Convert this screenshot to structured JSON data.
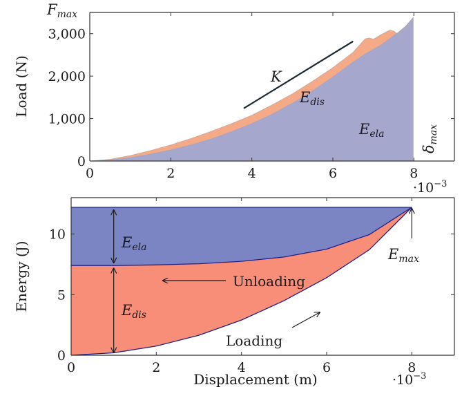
{
  "chart_data": [
    {
      "type": "area",
      "xlabel": "",
      "ylabel": "Load (N)",
      "x_ticks": [
        "0",
        "2",
        "4",
        "6",
        "8"
      ],
      "x_multiplier": "·10",
      "x_multiplier_exp": "−3",
      "y_ticks": [
        "0",
        "1,000",
        "2,000",
        "3,000"
      ],
      "xlim": [
        0,
        0.009
      ],
      "ylim": [
        0,
        3500
      ],
      "colors": {
        "dissipated": "#f4a987",
        "elastic": "#a5a8cc",
        "tangent": "#1a2a30"
      },
      "annotations": {
        "fmax_main": "F",
        "fmax_sub": "max",
        "stiffness": "K",
        "edis_main": "E",
        "edis_sub": "dis",
        "eela_main": "E",
        "eela_sub": "ela",
        "dmax_main": "δ",
        "dmax_sub": "max"
      },
      "series": [
        {
          "values": [
            [
              0,
              0
            ],
            [
              0.0005,
              25
            ],
            [
              0.001,
              80
            ],
            [
              0.0015,
              160
            ],
            [
              0.002,
              260
            ],
            [
              0.0025,
              380
            ],
            [
              0.003,
              520
            ],
            [
              0.0035,
              690
            ],
            [
              0.004,
              880
            ],
            [
              0.0045,
              1100
            ],
            [
              0.005,
              1360
            ],
            [
              0.0055,
              1650
            ],
            [
              0.006,
              1980
            ],
            [
              0.0065,
              2330
            ],
            [
              0.0068,
              2520
            ],
            [
              0.0072,
              2740
            ],
            [
              0.0076,
              3020
            ],
            [
              0.0078,
              3180
            ],
            [
              0.008,
              3400
            ]
          ]
        },
        {
          "values": [
            [
              0,
              0
            ],
            [
              0.0005,
              40
            ],
            [
              0.001,
              130
            ],
            [
              0.0015,
              245
            ],
            [
              0.002,
              380
            ],
            [
              0.0025,
              530
            ],
            [
              0.003,
              700
            ],
            [
              0.0035,
              880
            ],
            [
              0.004,
              1080
            ],
            [
              0.0045,
              1320
            ],
            [
              0.005,
              1580
            ],
            [
              0.0055,
              1880
            ],
            [
              0.006,
              2200
            ],
            [
              0.0065,
              2560
            ],
            [
              0.0068,
              2880
            ],
            [
              0.0069,
              2900
            ],
            [
              0.007,
              2870
            ],
            [
              0.0072,
              2980
            ],
            [
              0.0074,
              3080
            ],
            [
              0.0075,
              3060
            ],
            [
              0.0076,
              2990
            ],
            [
              0.0078,
              3140
            ],
            [
              0.008,
              3380
            ]
          ]
        }
      ],
      "tangent_line": [
        [
          0.0038,
          1240
        ],
        [
          0.0065,
          2820
        ]
      ]
    },
    {
      "type": "area",
      "xlabel": "Displacement (m)",
      "ylabel": "Energy (J)",
      "x_ticks": [
        "0",
        "2",
        "4",
        "6",
        "8"
      ],
      "x_multiplier": "·10",
      "x_multiplier_exp": "−3",
      "y_ticks": [
        "0",
        "5",
        "10"
      ],
      "xlim": [
        0,
        0.009
      ],
      "ylim": [
        0,
        13
      ],
      "colors": {
        "dissipated": "#f88e78",
        "elastic": "#7b85c4",
        "edge": "#1f1f8a",
        "arrow": "#1a1a1a"
      },
      "annotations": {
        "eela_main": "E",
        "eela_sub": "ela",
        "edis_main": "E",
        "edis_sub": "dis",
        "emax_main": "E",
        "emax_sub": "max",
        "unloading": "Unloading",
        "loading": "Loading"
      },
      "elastic_top": 12.2,
      "unloading_level": 7.4,
      "series": [
        {
          "values": [
            [
              0,
              0
            ],
            [
              0.001,
              0.2
            ],
            [
              0.002,
              0.75
            ],
            [
              0.003,
              1.65
            ],
            [
              0.004,
              2.9
            ],
            [
              0.005,
              4.5
            ],
            [
              0.006,
              6.4
            ],
            [
              0.007,
              8.7
            ],
            [
              0.008,
              12.2
            ]
          ]
        },
        {
          "values": [
            [
              0,
              7.4
            ],
            [
              0.001,
              7.4
            ],
            [
              0.002,
              7.45
            ],
            [
              0.003,
              7.55
            ],
            [
              0.004,
              7.75
            ],
            [
              0.005,
              8.1
            ],
            [
              0.006,
              8.75
            ],
            [
              0.007,
              9.95
            ],
            [
              0.008,
              12.2
            ]
          ]
        }
      ]
    }
  ]
}
